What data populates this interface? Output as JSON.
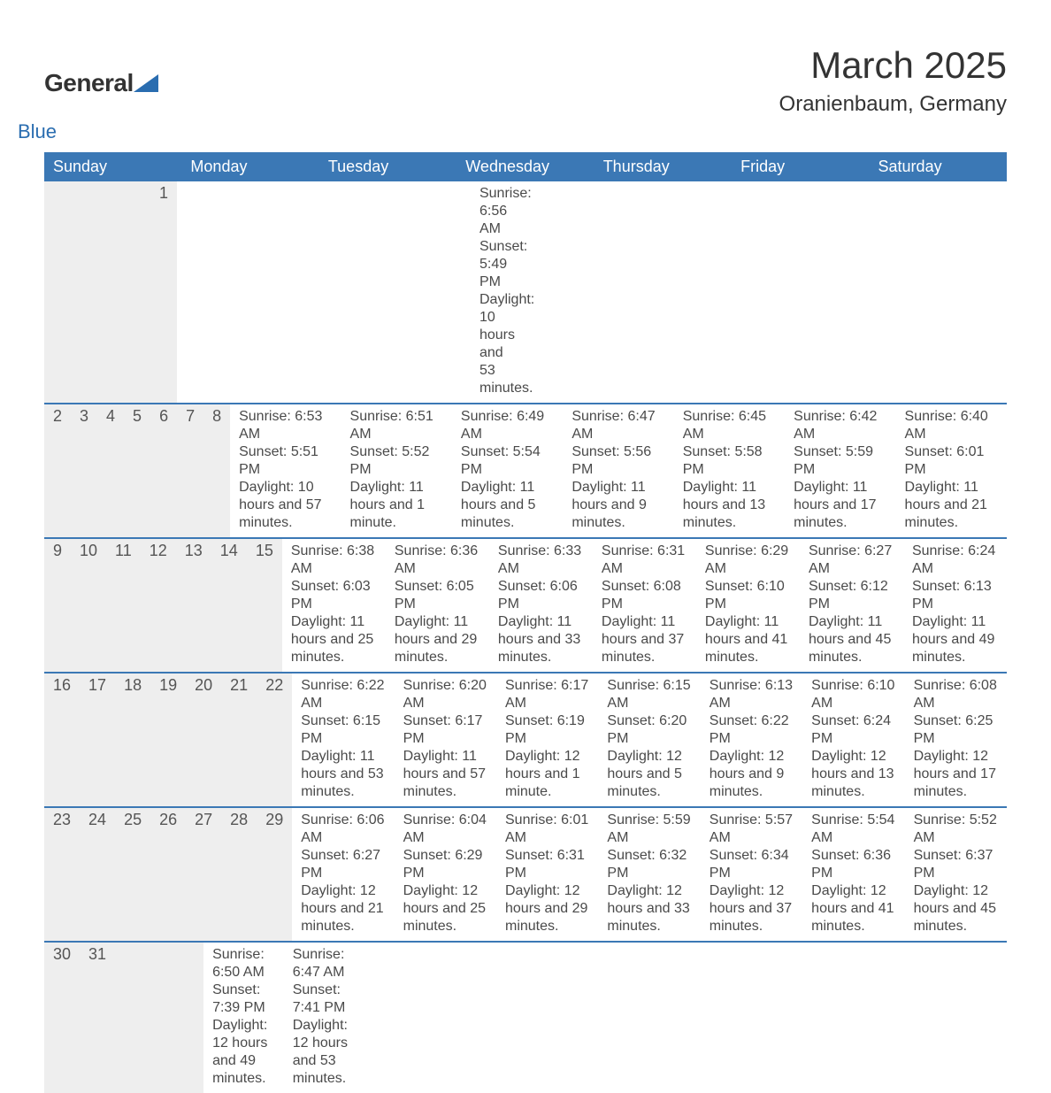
{
  "brand": {
    "name1": "General",
    "name2": "Blue",
    "color": "#2a6db0"
  },
  "title": "March 2025",
  "location": "Oranienbaum, Germany",
  "colors": {
    "header_bg": "#3b78b5",
    "header_fg": "#ffffff",
    "daynum_bg": "#eeeeee",
    "row_border": "#3b78b5",
    "text": "#4a4a4a"
  },
  "fonts": {
    "title_pt": 42,
    "location_pt": 24,
    "dow_pt": 18,
    "body_pt": 16
  },
  "dow": [
    "Sunday",
    "Monday",
    "Tuesday",
    "Wednesday",
    "Thursday",
    "Friday",
    "Saturday"
  ],
  "weeks": [
    [
      null,
      null,
      null,
      null,
      null,
      null,
      {
        "n": "1",
        "sunrise": "6:56 AM",
        "sunset": "5:49 PM",
        "daylight": "10 hours and 53 minutes."
      }
    ],
    [
      {
        "n": "2",
        "sunrise": "6:53 AM",
        "sunset": "5:51 PM",
        "daylight": "10 hours and 57 minutes."
      },
      {
        "n": "3",
        "sunrise": "6:51 AM",
        "sunset": "5:52 PM",
        "daylight": "11 hours and 1 minute."
      },
      {
        "n": "4",
        "sunrise": "6:49 AM",
        "sunset": "5:54 PM",
        "daylight": "11 hours and 5 minutes."
      },
      {
        "n": "5",
        "sunrise": "6:47 AM",
        "sunset": "5:56 PM",
        "daylight": "11 hours and 9 minutes."
      },
      {
        "n": "6",
        "sunrise": "6:45 AM",
        "sunset": "5:58 PM",
        "daylight": "11 hours and 13 minutes."
      },
      {
        "n": "7",
        "sunrise": "6:42 AM",
        "sunset": "5:59 PM",
        "daylight": "11 hours and 17 minutes."
      },
      {
        "n": "8",
        "sunrise": "6:40 AM",
        "sunset": "6:01 PM",
        "daylight": "11 hours and 21 minutes."
      }
    ],
    [
      {
        "n": "9",
        "sunrise": "6:38 AM",
        "sunset": "6:03 PM",
        "daylight": "11 hours and 25 minutes."
      },
      {
        "n": "10",
        "sunrise": "6:36 AM",
        "sunset": "6:05 PM",
        "daylight": "11 hours and 29 minutes."
      },
      {
        "n": "11",
        "sunrise": "6:33 AM",
        "sunset": "6:06 PM",
        "daylight": "11 hours and 33 minutes."
      },
      {
        "n": "12",
        "sunrise": "6:31 AM",
        "sunset": "6:08 PM",
        "daylight": "11 hours and 37 minutes."
      },
      {
        "n": "13",
        "sunrise": "6:29 AM",
        "sunset": "6:10 PM",
        "daylight": "11 hours and 41 minutes."
      },
      {
        "n": "14",
        "sunrise": "6:27 AM",
        "sunset": "6:12 PM",
        "daylight": "11 hours and 45 minutes."
      },
      {
        "n": "15",
        "sunrise": "6:24 AM",
        "sunset": "6:13 PM",
        "daylight": "11 hours and 49 minutes."
      }
    ],
    [
      {
        "n": "16",
        "sunrise": "6:22 AM",
        "sunset": "6:15 PM",
        "daylight": "11 hours and 53 minutes."
      },
      {
        "n": "17",
        "sunrise": "6:20 AM",
        "sunset": "6:17 PM",
        "daylight": "11 hours and 57 minutes."
      },
      {
        "n": "18",
        "sunrise": "6:17 AM",
        "sunset": "6:19 PM",
        "daylight": "12 hours and 1 minute."
      },
      {
        "n": "19",
        "sunrise": "6:15 AM",
        "sunset": "6:20 PM",
        "daylight": "12 hours and 5 minutes."
      },
      {
        "n": "20",
        "sunrise": "6:13 AM",
        "sunset": "6:22 PM",
        "daylight": "12 hours and 9 minutes."
      },
      {
        "n": "21",
        "sunrise": "6:10 AM",
        "sunset": "6:24 PM",
        "daylight": "12 hours and 13 minutes."
      },
      {
        "n": "22",
        "sunrise": "6:08 AM",
        "sunset": "6:25 PM",
        "daylight": "12 hours and 17 minutes."
      }
    ],
    [
      {
        "n": "23",
        "sunrise": "6:06 AM",
        "sunset": "6:27 PM",
        "daylight": "12 hours and 21 minutes."
      },
      {
        "n": "24",
        "sunrise": "6:04 AM",
        "sunset": "6:29 PM",
        "daylight": "12 hours and 25 minutes."
      },
      {
        "n": "25",
        "sunrise": "6:01 AM",
        "sunset": "6:31 PM",
        "daylight": "12 hours and 29 minutes."
      },
      {
        "n": "26",
        "sunrise": "5:59 AM",
        "sunset": "6:32 PM",
        "daylight": "12 hours and 33 minutes."
      },
      {
        "n": "27",
        "sunrise": "5:57 AM",
        "sunset": "6:34 PM",
        "daylight": "12 hours and 37 minutes."
      },
      {
        "n": "28",
        "sunrise": "5:54 AM",
        "sunset": "6:36 PM",
        "daylight": "12 hours and 41 minutes."
      },
      {
        "n": "29",
        "sunrise": "5:52 AM",
        "sunset": "6:37 PM",
        "daylight": "12 hours and 45 minutes."
      }
    ],
    [
      {
        "n": "30",
        "sunrise": "6:50 AM",
        "sunset": "7:39 PM",
        "daylight": "12 hours and 49 minutes."
      },
      {
        "n": "31",
        "sunrise": "6:47 AM",
        "sunset": "7:41 PM",
        "daylight": "12 hours and 53 minutes."
      },
      null,
      null,
      null,
      null,
      null
    ]
  ],
  "labels": {
    "sunrise": "Sunrise: ",
    "sunset": "Sunset: ",
    "daylight": "Daylight: "
  }
}
